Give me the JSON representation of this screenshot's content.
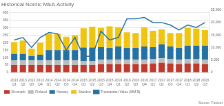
{
  "chart_data": {
    "type": "bar",
    "stacked": true,
    "title": "Historical Nordic M&A Activity",
    "annotations": [
      "Source: Factset"
    ],
    "categories": [
      "2013\nQ1",
      "2013\nQ2",
      "2013\nQ3",
      "2013\nQ4",
      "2014\nQ1",
      "2014\nQ2",
      "2014\nQ3",
      "2014\nQ4",
      "2015\nQ1",
      "2015\nQ2",
      "2015\nQ3",
      "2015\nQ4",
      "2016\nQ1",
      "2016\nQ2",
      "2016\nQ3",
      "2016\nQ4",
      "2017\nQ1",
      "2017\nQ2",
      "2017\nQ3",
      "2017\nQ4",
      "2018\nQ1",
      "2018\nQ2",
      "2018\nQ3"
    ],
    "series": [
      {
        "name": "Denmark",
        "color": "#C0392B",
        "values": [
          50,
          50,
          50,
          50,
          50,
          50,
          50,
          50,
          50,
          50,
          55,
          55,
          55,
          55,
          55,
          55,
          60,
          65,
          60,
          55,
          60,
          60,
          55
        ]
      },
      {
        "name": "Finland",
        "color": "#BDBDBD",
        "values": [
          30,
          30,
          30,
          30,
          30,
          30,
          30,
          30,
          28,
          28,
          30,
          30,
          30,
          30,
          30,
          30,
          30,
          30,
          30,
          30,
          30,
          30,
          30
        ]
      },
      {
        "name": "Norway",
        "color": "#2471A3",
        "values": [
          45,
          45,
          30,
          40,
          70,
          70,
          70,
          70,
          90,
          90,
          85,
          80,
          90,
          80,
          80,
          90,
          80,
          95,
          85,
          80,
          90,
          90,
          95
        ]
      },
      {
        "name": "Sweden",
        "color": "#F1C40F",
        "values": [
          80,
          90,
          50,
          80,
          110,
          110,
          90,
          100,
          130,
          140,
          130,
          145,
          130,
          105,
          100,
          130,
          110,
          100,
          90,
          100,
          120,
          115,
          105
        ]
      },
      {
        "name": "Transaction Value (MM $)",
        "type": "line",
        "axis": "y2",
        "color": "#2471A3",
        "values": [
          13000,
          14000,
          10000,
          14000,
          16000,
          15500,
          9000,
          14000,
          6500,
          6500,
          16500,
          13000,
          14000,
          21500,
          21500,
          22000,
          20000,
          20000,
          19000,
          17000,
          19000,
          18000,
          20000
        ]
      }
    ],
    "ylim": [
      0,
      420
    ],
    "yticks": [
      0,
      50,
      100,
      150,
      200,
      250,
      300,
      350,
      400
    ],
    "y2lim": [
      0,
      25000
    ],
    "y2ticks": [
      0,
      {
        "value": 5000,
        "label": "5,000"
      },
      {
        "value": 10000,
        "label": "10,000"
      },
      {
        "value": 15000,
        "label": "15,000"
      },
      {
        "value": 20000,
        "label": "20,000"
      },
      {
        "value": 25000,
        "label": "25,000"
      }
    ],
    "grid": true,
    "legend": "bottom"
  }
}
